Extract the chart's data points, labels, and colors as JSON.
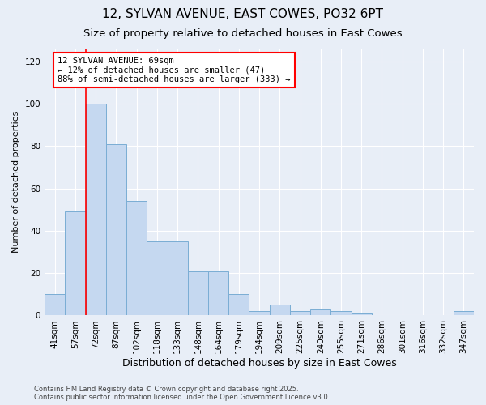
{
  "title_line1": "12, SYLVAN AVENUE, EAST COWES, PO32 6PT",
  "title_line2": "Size of property relative to detached houses in East Cowes",
  "xlabel": "Distribution of detached houses by size in East Cowes",
  "ylabel": "Number of detached properties",
  "categories": [
    "41sqm",
    "57sqm",
    "72sqm",
    "87sqm",
    "102sqm",
    "118sqm",
    "133sqm",
    "148sqm",
    "164sqm",
    "179sqm",
    "194sqm",
    "209sqm",
    "225sqm",
    "240sqm",
    "255sqm",
    "271sqm",
    "286sqm",
    "301sqm",
    "316sqm",
    "332sqm",
    "347sqm"
  ],
  "values": [
    10,
    49,
    100,
    81,
    54,
    35,
    35,
    21,
    21,
    10,
    2,
    5,
    2,
    3,
    2,
    1,
    0,
    0,
    0,
    0,
    2
  ],
  "bar_color": "#c5d8f0",
  "bar_edge_color": "#7aadd4",
  "red_line_index": 1.5,
  "annotation_text": "12 SYLVAN AVENUE: 69sqm\n← 12% of detached houses are smaller (47)\n88% of semi-detached houses are larger (333) →",
  "annotation_box_color": "white",
  "annotation_box_edge_color": "red",
  "red_line_color": "red",
  "ylim": [
    0,
    126
  ],
  "yticks": [
    0,
    20,
    40,
    60,
    80,
    100,
    120
  ],
  "background_color": "#e8eef7",
  "grid_color": "#ffffff",
  "footnote": "Contains HM Land Registry data © Crown copyright and database right 2025.\nContains public sector information licensed under the Open Government Licence v3.0.",
  "title_fontsize": 11,
  "subtitle_fontsize": 9.5,
  "xlabel_fontsize": 9,
  "ylabel_fontsize": 8,
  "tick_fontsize": 7.5,
  "annotation_fontsize": 7.5,
  "footnote_fontsize": 6
}
